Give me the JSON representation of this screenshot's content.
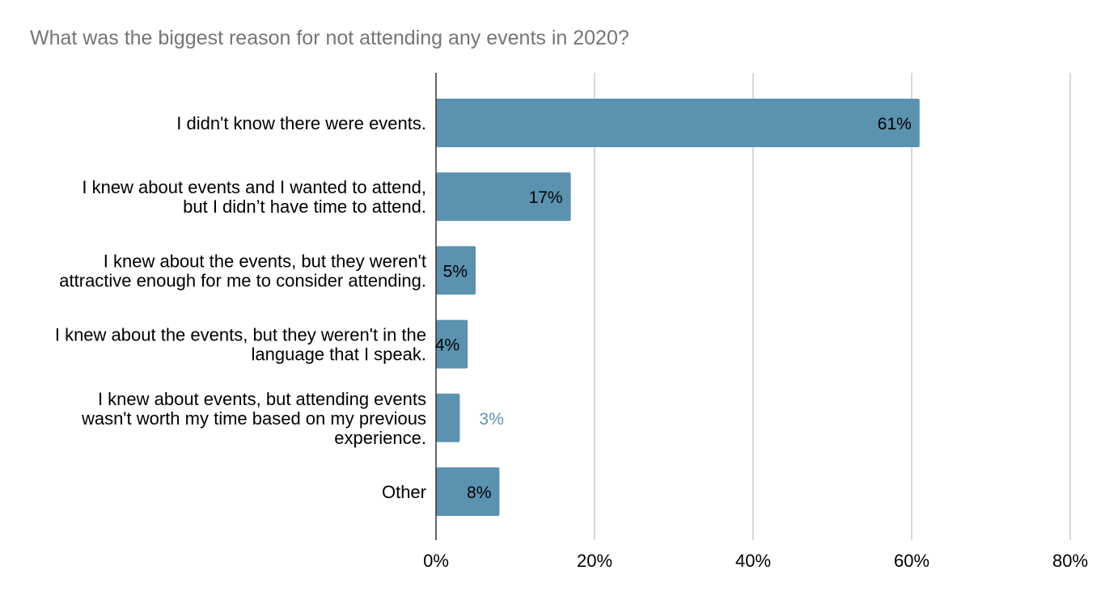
{
  "chart_data": {
    "type": "bar",
    "orientation": "horizontal",
    "title": "What was the biggest reason for not attending any events in 2020?",
    "categories": [
      [
        "I didn't know there were events."
      ],
      [
        "I knew about events and I wanted to attend,",
        "but I didn’t have time to attend."
      ],
      [
        "I knew about the events, but they weren't",
        "attractive enough for me to consider attending."
      ],
      [
        "I knew about the events, but they weren't in the",
        "language that I speak."
      ],
      [
        "I knew about events, but attending events",
        "wasn't worth my time based on my previous",
        "experience."
      ],
      [
        "Other"
      ]
    ],
    "values": [
      61,
      17,
      5,
      4,
      3,
      8
    ],
    "data_labels": [
      "61%",
      "17%",
      "5%",
      "4%",
      "3%",
      "8%"
    ],
    "xlim": [
      0,
      80
    ],
    "x_ticks": [
      0,
      20,
      40,
      60,
      80
    ],
    "x_tick_labels": [
      "0%",
      "20%",
      "40%",
      "60%",
      "80%"
    ],
    "xlabel": "",
    "ylabel": "",
    "grid": true,
    "legend": "none",
    "colors": {
      "bar": "#5b92b0",
      "label_inside": "#000000",
      "label_outside": "#5b92b0",
      "grid": "#cccccc",
      "axis": "#333333",
      "title": "#757575",
      "text": "#000000"
    }
  }
}
